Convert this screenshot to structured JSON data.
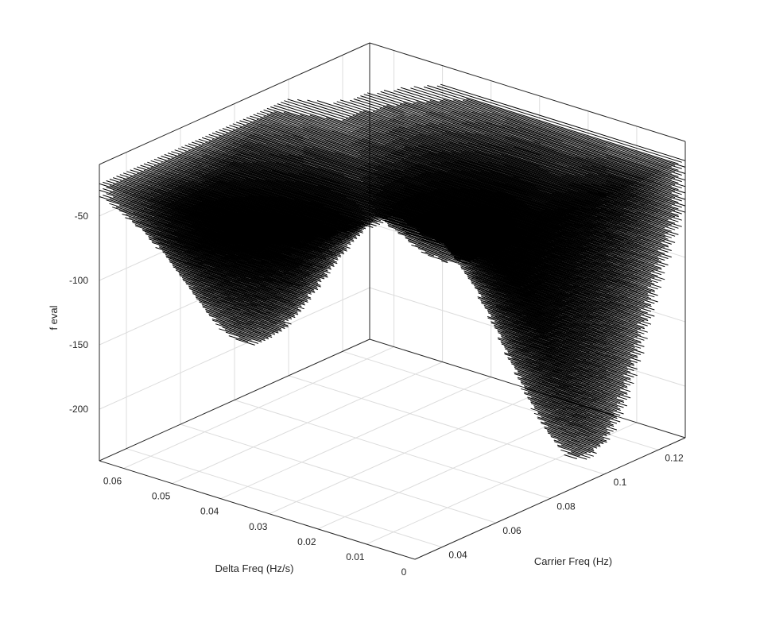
{
  "chart_data": {
    "type": "line",
    "subtype": "3d-contour-traces",
    "title": "",
    "xlabel": "Carrier Freq (Hz)",
    "ylabel": "Delta Freq (Hz/s)",
    "zlabel": "f eval",
    "xlim": [
      0.03,
      0.13
    ],
    "ylim": [
      0,
      0.065
    ],
    "zlim": [
      -240,
      -10
    ],
    "xticks": [
      0.04,
      0.06,
      0.08,
      0.1,
      0.12
    ],
    "xticklabels": [
      "0.04",
      "0.06",
      "0.08",
      "0.1",
      "0.12"
    ],
    "yticks": [
      0,
      0.01,
      0.02,
      0.03,
      0.04,
      0.05,
      0.06
    ],
    "yticklabels": [
      "0",
      "0.01",
      "0.02",
      "0.03",
      "0.04",
      "0.05",
      "0.06"
    ],
    "zticks": [
      -200,
      -150,
      -100,
      -50
    ],
    "zticklabels": [
      "-200",
      "-150",
      "-100",
      "-50"
    ],
    "grid": true,
    "box": true,
    "line_color": "#000000",
    "surface_minima": [
      {
        "x": 0.1,
        "y": 0.005,
        "z": -235
      },
      {
        "x": 0.06,
        "y": 0.05,
        "z": -160
      },
      {
        "x": 0.1,
        "y": 0.03,
        "z": -110
      }
    ],
    "surface_rim_level": -20,
    "z_step_between_traces": 5
  }
}
